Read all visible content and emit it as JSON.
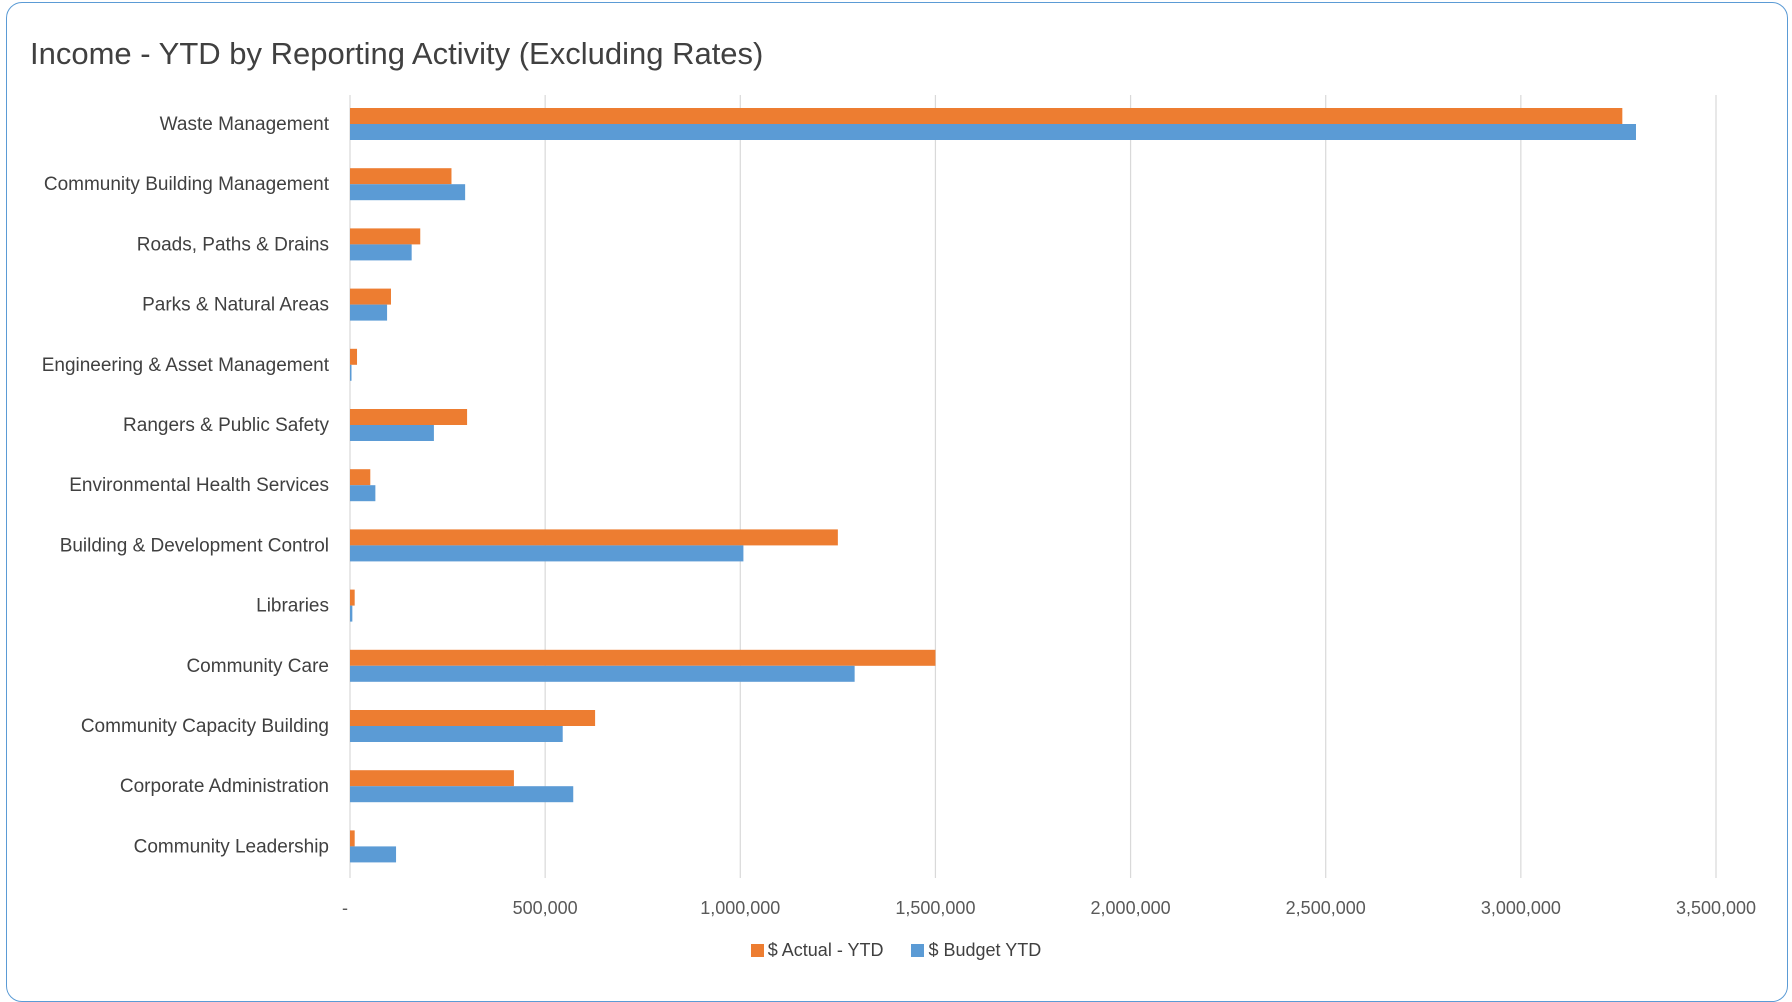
{
  "chart_data": {
    "type": "bar",
    "orientation": "horizontal",
    "title": "Income - YTD by Reporting Activity (Excluding Rates)",
    "xlabel": "",
    "ylabel": "",
    "xlim": [
      0,
      3500000
    ],
    "x_ticks": [
      0,
      500000,
      1000000,
      1500000,
      2000000,
      2500000,
      3000000,
      3500000
    ],
    "x_tick_labels": [
      "-",
      "500,000",
      "1,000,000",
      "1,500,000",
      "2,000,000",
      "2,500,000",
      "3,000,000",
      "3,500,000"
    ],
    "grid": "vertical",
    "legend_position": "bottom",
    "categories": [
      "Waste Management",
      "Community Building Management",
      "Roads, Paths & Drains",
      "Parks & Natural Areas",
      "Engineering & Asset Management",
      "Rangers & Public Safety",
      "Environmental Health Services",
      "Building & Development Control",
      "Libraries",
      "Community Care",
      "Community Capacity Building",
      "Corporate Administration",
      "Community Leadership"
    ],
    "series": [
      {
        "name": "$ Actual - YTD",
        "color": "#ed7d31",
        "values": [
          3260000,
          260000,
          180000,
          105000,
          18000,
          300000,
          52000,
          1250000,
          12000,
          1500000,
          628000,
          420000,
          12000
        ]
      },
      {
        "name": "$ Budget YTD",
        "color": "#5b9bd5",
        "values": [
          3295000,
          295000,
          158000,
          95000,
          3000,
          215000,
          65000,
          1008000,
          6000,
          1293000,
          545000,
          572000,
          118000
        ]
      }
    ]
  }
}
